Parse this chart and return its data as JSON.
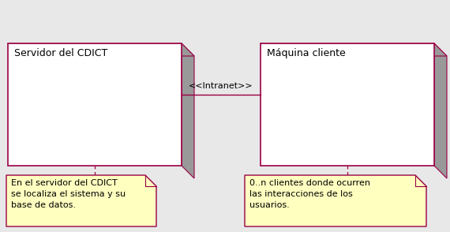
{
  "bg_color": "#e8e8e8",
  "box_fill": "#ffffff",
  "box_edge": "#990044",
  "shadow_fill": "#999999",
  "note_fill": "#ffffc0",
  "note_edge": "#990044",
  "intranet_label": "<<Intranet>>",
  "box1_label": "Servidor del CDICT",
  "box2_label": "Máquina cliente",
  "note1_lines": [
    "En el servidor del CDICT",
    "se localiza el sistema y su",
    "base de datos."
  ],
  "note2_lines": [
    "0..n clientes donde ocurren",
    "las interacciones de los",
    "usuarios."
  ],
  "font_size_label": 9,
  "font_size_note": 8,
  "font_size_intranet": 8
}
